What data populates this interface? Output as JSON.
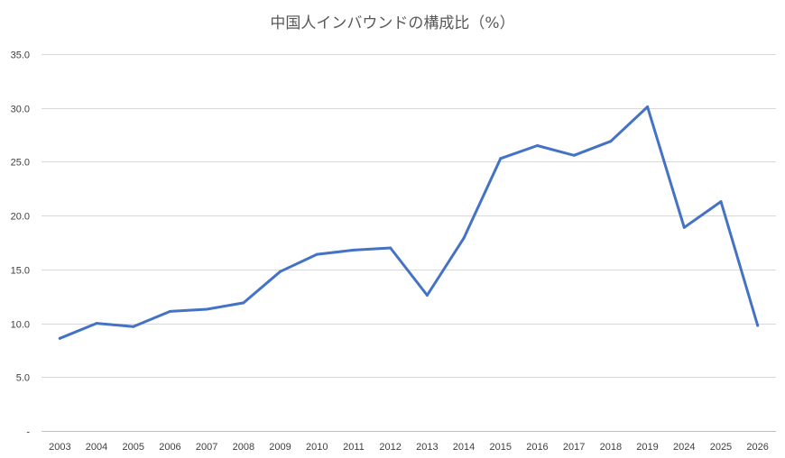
{
  "chart_data": {
    "type": "line",
    "title": "中国人インバウンドの構成比（%）",
    "xlabel": "",
    "ylabel": "",
    "categories": [
      "2003",
      "2004",
      "2005",
      "2006",
      "2007",
      "2008",
      "2009",
      "2010",
      "2011",
      "2012",
      "2013",
      "2014",
      "2015",
      "2016",
      "2017",
      "2018",
      "2019",
      "2024",
      "2025",
      "2026"
    ],
    "series": [
      {
        "values": [
          8.6,
          10.0,
          9.7,
          11.1,
          11.3,
          11.9,
          14.8,
          16.4,
          16.8,
          17.0,
          12.6,
          17.9,
          25.3,
          26.5,
          25.6,
          26.9,
          30.1,
          18.9,
          21.3,
          9.8
        ],
        "color": "#4472c4"
      }
    ],
    "ylim": [
      0,
      35
    ],
    "yticks": [
      0,
      5,
      10,
      15,
      20,
      25,
      30,
      35
    ],
    "ytick_labels": [
      "-",
      "5.0",
      "10.0",
      "15.0",
      "20.0",
      "25.0",
      "30.0",
      "35.0"
    ],
    "grid": true,
    "legend": "none"
  }
}
